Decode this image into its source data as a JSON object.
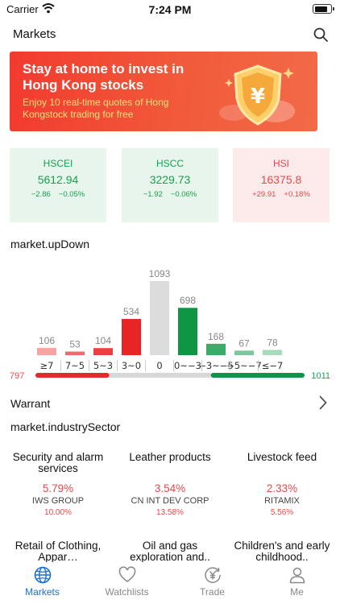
{
  "status": {
    "carrier": "Carrier",
    "time": "7:24 PM"
  },
  "header": {
    "title": "Markets"
  },
  "banner": {
    "title": "Stay at home to invest in Hong Kong stocks",
    "subtitle": "Enjoy 10 real-time quotes of Hong Kongstock trading for free",
    "emblem": "¥"
  },
  "indices": [
    {
      "name": "HSCEI",
      "value": "5612.94",
      "change": "−2.86",
      "pct": "−0.05%",
      "trend": "down"
    },
    {
      "name": "HSCC",
      "value": "3229.73",
      "change": "−1.92",
      "pct": "−0.06%",
      "trend": "down"
    },
    {
      "name": "HSI",
      "value": "16375.8",
      "change": "+29.91",
      "pct": "+0.18%",
      "trend": "up"
    }
  ],
  "updown": {
    "title": "market.upDown",
    "up_total": "797",
    "down_total": "1011"
  },
  "chart_data": {
    "type": "bar",
    "categories": [
      "≥7",
      "7~5",
      "5~3",
      "3~0",
      "0",
      "0~−3",
      "−3~−5",
      "−5~−7",
      "≤−7"
    ],
    "values": [
      106,
      53,
      104,
      534,
      1093,
      698,
      168,
      67,
      78
    ],
    "colors": [
      "#f5a3a3",
      "#ef6b6b",
      "#ec3f3f",
      "#e82525",
      "#dcdcdc",
      "#0e9645",
      "#3bab68",
      "#7cc89c",
      "#a8dbbd"
    ],
    "ratio_bar": {
      "up": 797,
      "flat": 1093,
      "down": 1011
    }
  },
  "warrant": {
    "label": "Warrant"
  },
  "industry": {
    "title": "market.industrySector",
    "sectors": [
      {
        "name": "Security and alarm services",
        "pct": "5.79%",
        "stock": "IWS GROUP",
        "stock_pct": "10.00%"
      },
      {
        "name": "Leather products",
        "pct": "3.54%",
        "stock": "CN INT DEV CORP",
        "stock_pct": "13.58%"
      },
      {
        "name": "Livestock feed",
        "pct": "2.33%",
        "stock": "RITAMIX",
        "stock_pct": "5.56%"
      },
      {
        "name": "Retail of Clothing, Appar…"
      },
      {
        "name": "Oil and gas exploration and.."
      },
      {
        "name": "Children's and early childhood.."
      }
    ]
  },
  "tabbar": {
    "tabs": [
      {
        "label": "Markets",
        "icon": "globe-icon"
      },
      {
        "label": "Watchlists",
        "icon": "heart-icon"
      },
      {
        "label": "Trade",
        "icon": "trade-icon"
      },
      {
        "label": "Me",
        "icon": "person-icon"
      }
    ],
    "active_color": "#1a6fd1"
  },
  "colors": {
    "up": "#e84a4a",
    "down": "#18a050",
    "accent": "#1a6fd1"
  }
}
